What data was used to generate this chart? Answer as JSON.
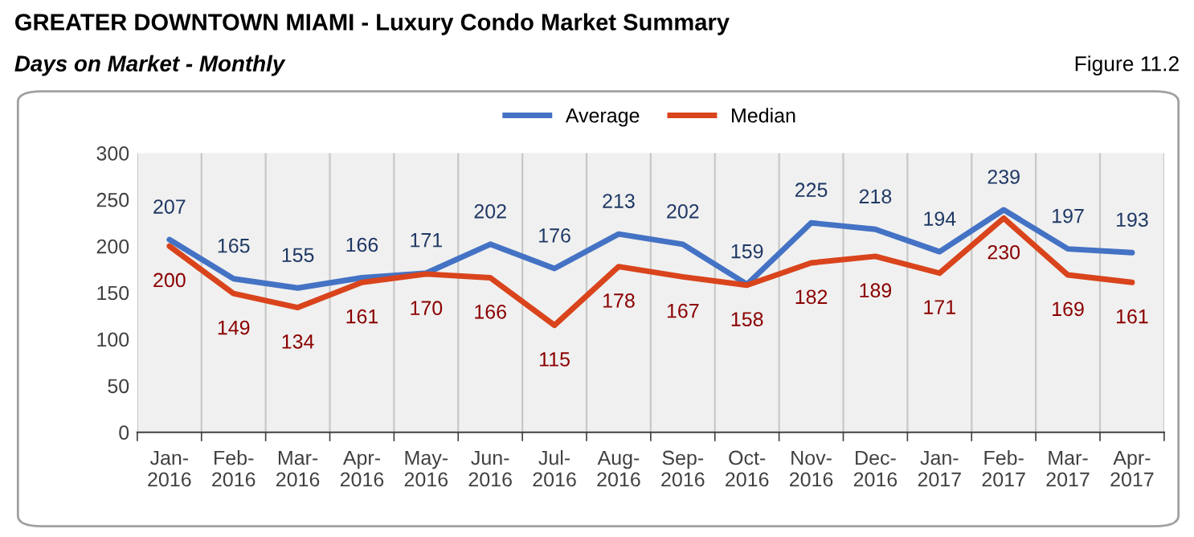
{
  "chart_data": {
    "type": "line",
    "title": "GREATER DOWNTOWN MIAMI - Luxury Condo Market Summary",
    "subtitle": "Days on Market - Monthly",
    "annotations": [
      "Figure 11.2"
    ],
    "categories": [
      "Jan-\n2016",
      "Feb-\n2016",
      "Mar-\n2016",
      "Apr-\n2016",
      "May-\n2016",
      "Jun-\n2016",
      "Jul-\n2016",
      "Aug-\n2016",
      "Sep-\n2016",
      "Oct-\n2016",
      "Nov-\n2016",
      "Dec-\n2016",
      "Jan-\n2017",
      "Feb-\n2017",
      "Mar-\n2017",
      "Apr-\n2017"
    ],
    "series": [
      {
        "name": "Average",
        "color": "#4472c4",
        "values": [
          207,
          165,
          155,
          166,
          171,
          202,
          176,
          213,
          202,
          159,
          225,
          218,
          194,
          239,
          197,
          193
        ]
      },
      {
        "name": "Median",
        "color": "#d9441c",
        "values": [
          200,
          149,
          134,
          161,
          170,
          166,
          115,
          178,
          167,
          158,
          182,
          189,
          171,
          230,
          169,
          161
        ]
      }
    ],
    "ylim": [
      0,
      300
    ],
    "yticks": [
      0,
      50,
      100,
      150,
      200,
      250,
      300
    ],
    "grid": "x",
    "legend": "top",
    "marker": "none",
    "line_style": "solid",
    "data_labels": true
  }
}
